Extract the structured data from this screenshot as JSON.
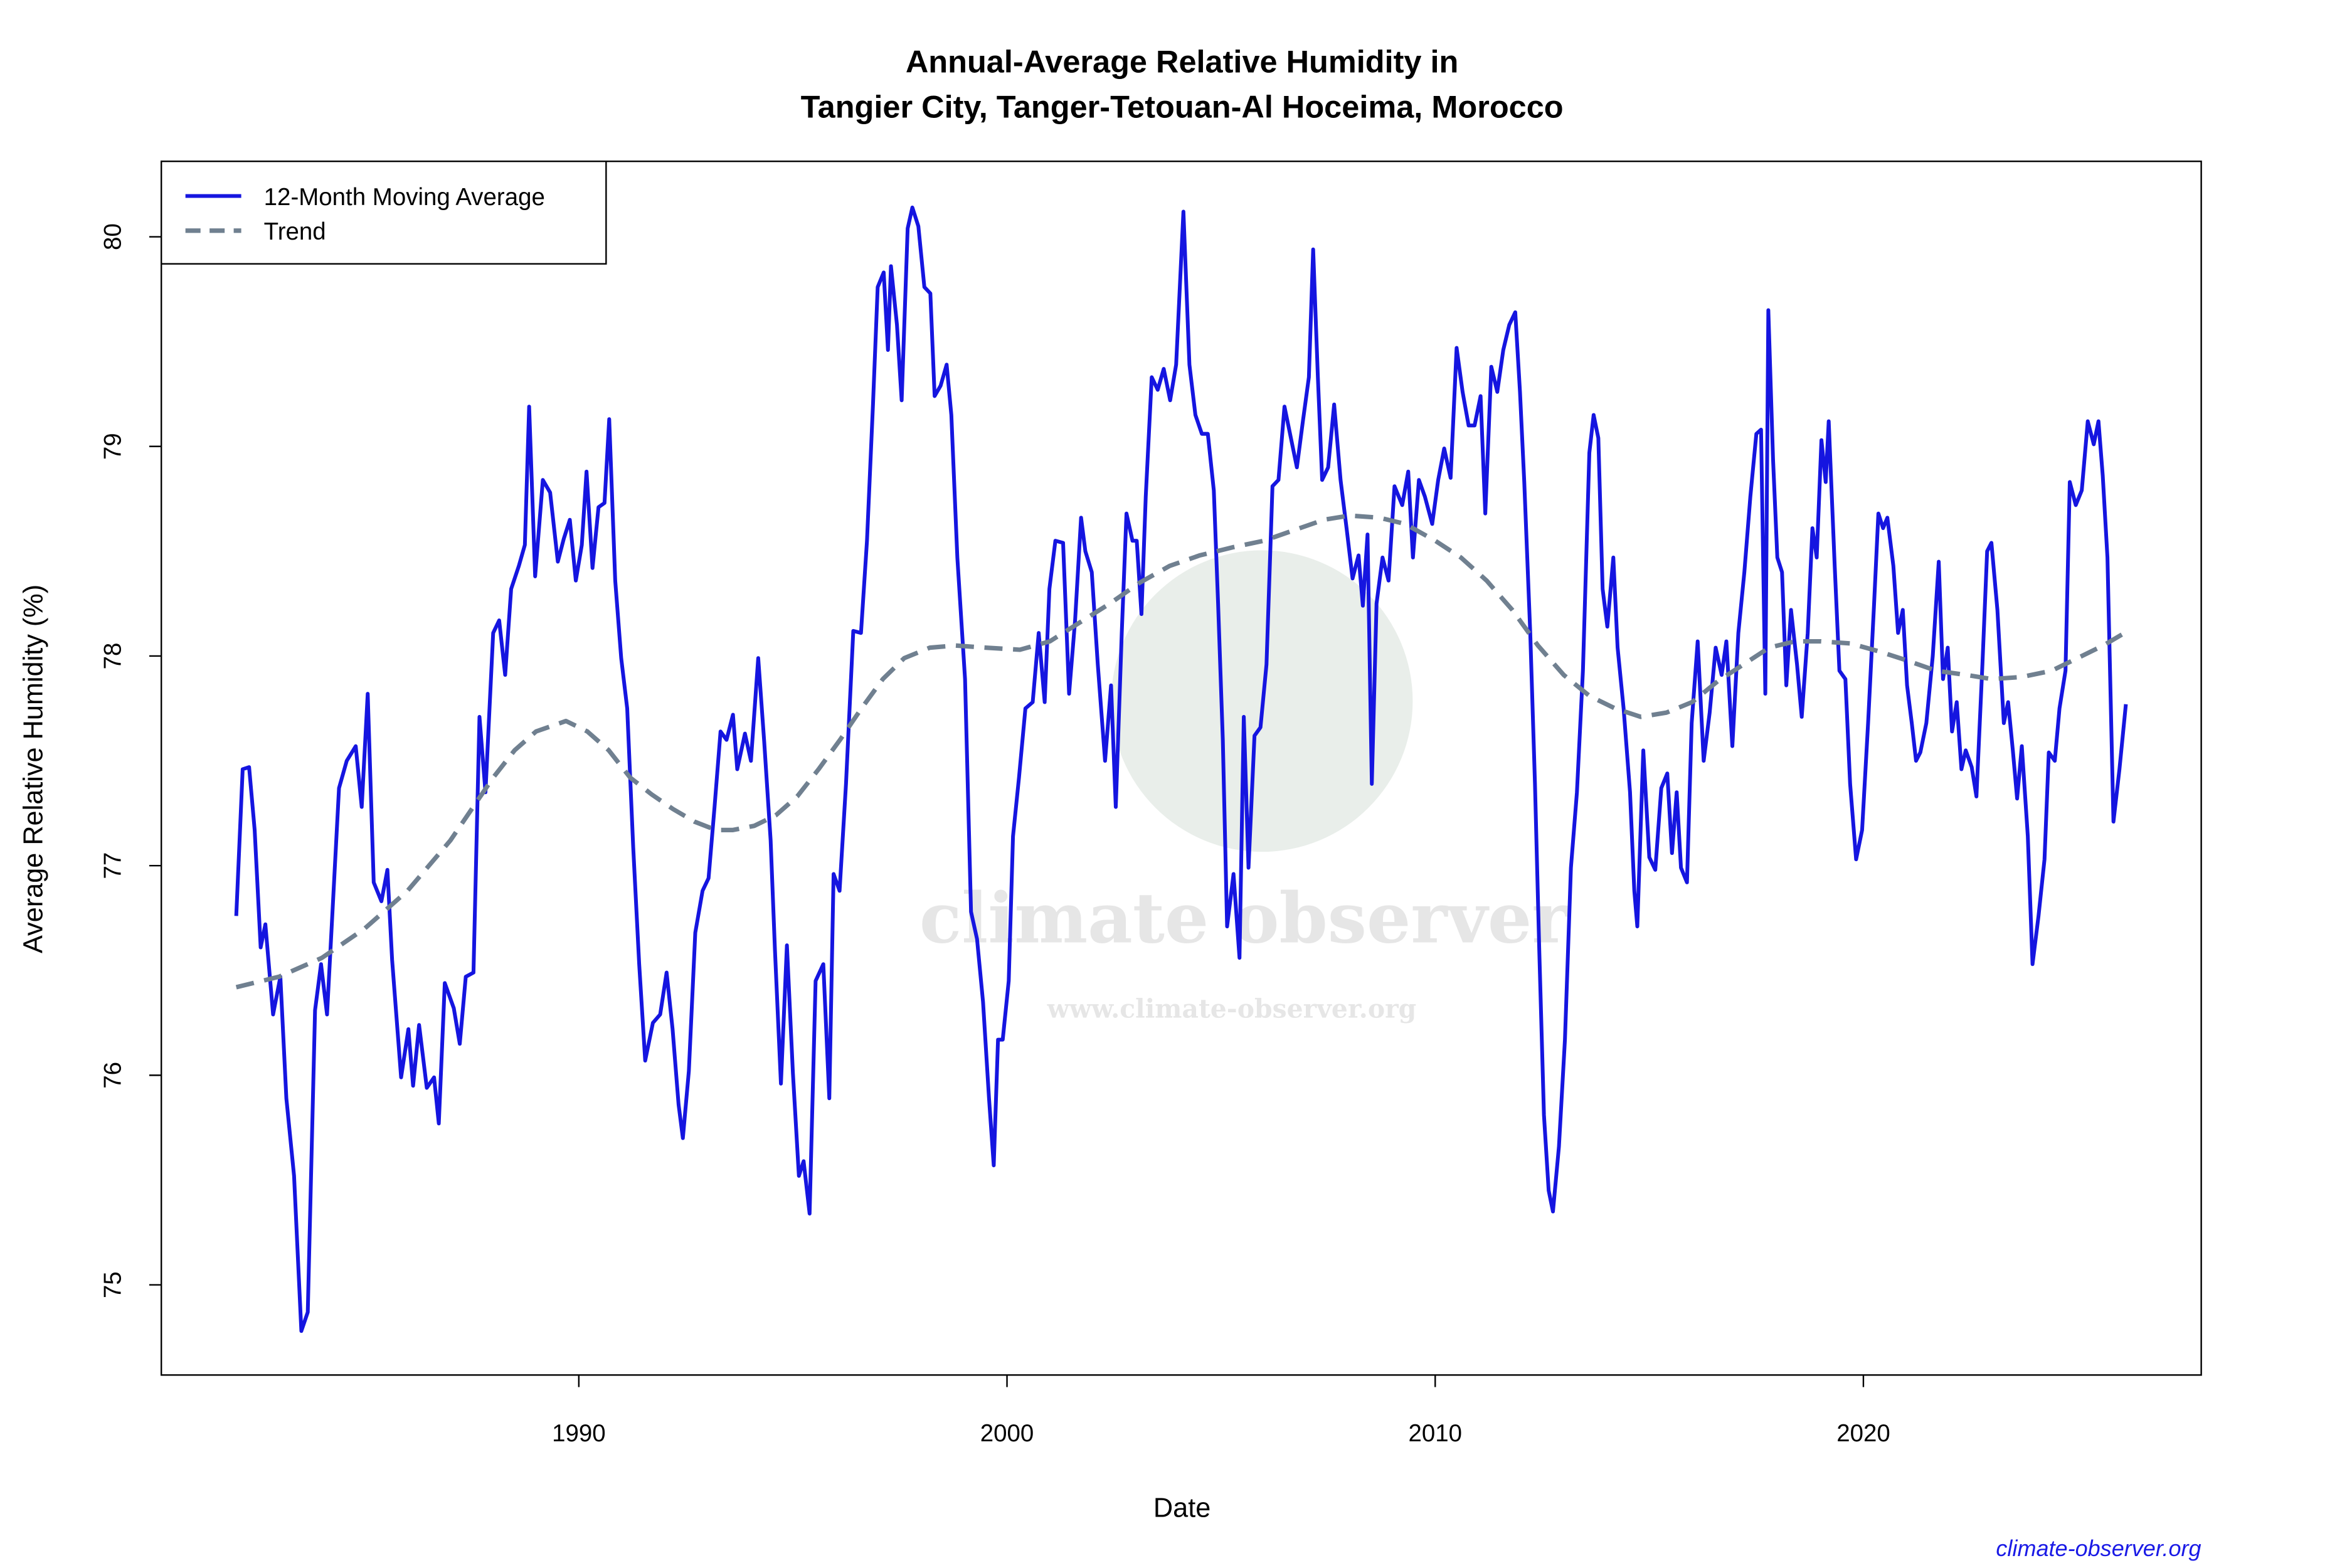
{
  "chart_data": {
    "type": "line",
    "title": [
      "Annual-Average Relative Humidity in",
      "Tangier City, Tanger-Tetouan-Al Hoceima, Morocco"
    ],
    "xlabel": "Date",
    "ylabel": "Average Relative Humidity (%)",
    "xlim": [
      1980.25,
      2027.89
    ],
    "ylim": [
      74.57,
      80.36
    ],
    "xticks": [
      1990,
      2000,
      2010,
      2020
    ],
    "yticks": [
      75,
      76,
      77,
      78,
      79,
      80
    ],
    "legend": "topleft",
    "watermark": {
      "text": "climate observer",
      "url": "www.climate-observer.org"
    },
    "source": "climate-observer.org",
    "series": [
      {
        "name": "12-Month Moving Average",
        "color": "#1515e0",
        "linestyle": "solid",
        "x": [
          1982.0,
          1982.15,
          1982.3,
          1982.43,
          1982.57,
          1982.68,
          1982.86,
          1983.03,
          1983.17,
          1983.35,
          1983.52,
          1983.67,
          1983.84,
          1983.98,
          1984.12,
          1984.26,
          1984.4,
          1984.58,
          1984.79,
          1984.93,
          1985.07,
          1985.21,
          1985.39,
          1985.53,
          1985.64,
          1985.85,
          1986.02,
          1986.13,
          1986.27,
          1986.45,
          1986.62,
          1986.73,
          1986.87,
          1987.08,
          1987.22,
          1987.36,
          1987.54,
          1987.68,
          1987.82,
          1988.0,
          1988.14,
          1988.28,
          1988.42,
          1988.6,
          1988.74,
          1988.84,
          1988.98,
          1989.16,
          1989.33,
          1989.51,
          1989.65,
          1989.79,
          1989.93,
          1990.07,
          1990.18,
          1990.32,
          1990.46,
          1990.6,
          1990.71,
          1990.85,
          1990.99,
          1991.13,
          1991.27,
          1991.41,
          1991.55,
          1991.73,
          1991.9,
          1992.05,
          1992.19,
          1992.33,
          1992.43,
          1992.57,
          1992.72,
          1992.89,
          1993.03,
          1993.17,
          1993.31,
          1993.45,
          1993.6,
          1993.7,
          1993.88,
          1994.02,
          1994.19,
          1994.33,
          1994.48,
          1994.58,
          1994.72,
          1994.86,
          1995.0,
          1995.14,
          1995.25,
          1995.39,
          1995.53,
          1995.71,
          1995.85,
          1995.95,
          1996.09,
          1996.24,
          1996.41,
          1996.59,
          1996.73,
          1996.87,
          1996.98,
          1997.12,
          1997.22,
          1997.29,
          1997.43,
          1997.54,
          1997.68,
          1997.79,
          1997.93,
          1998.07,
          1998.21,
          1998.31,
          1998.45,
          1998.59,
          1998.7,
          1998.84,
          1999.02,
          1999.16,
          1999.3,
          1999.44,
          1999.58,
          1999.69,
          1999.79,
          1999.9,
          2000.04,
          2000.14,
          2000.28,
          2000.43,
          2000.6,
          2000.74,
          2000.88,
          2000.99,
          2001.13,
          2001.31,
          2001.45,
          2001.59,
          2001.73,
          2001.83,
          2001.98,
          2002.12,
          2002.29,
          2002.43,
          2002.54,
          2002.68,
          2002.79,
          2002.93,
          2003.03,
          2003.14,
          2003.24,
          2003.38,
          2003.52,
          2003.66,
          2003.81,
          2003.95,
          2004.12,
          2004.26,
          2004.4,
          2004.55,
          2004.69,
          2004.83,
          2004.93,
          2005.04,
          2005.14,
          2005.29,
          2005.43,
          2005.53,
          2005.64,
          2005.78,
          2005.92,
          2006.06,
          2006.2,
          2006.34,
          2006.48,
          2006.63,
          2006.77,
          2006.91,
          2007.05,
          2007.15,
          2007.26,
          2007.36,
          2007.5,
          2007.64,
          2007.79,
          2007.93,
          2008.07,
          2008.21,
          2008.31,
          2008.42,
          2008.52,
          2008.63,
          2008.77,
          2008.91,
          2009.05,
          2009.23,
          2009.37,
          2009.48,
          2009.62,
          2009.76,
          2009.93,
          2010.07,
          2010.21,
          2010.36,
          2010.5,
          2010.64,
          2010.78,
          2010.92,
          2011.06,
          2011.17,
          2011.31,
          2011.45,
          2011.59,
          2011.73,
          2011.87,
          2011.98,
          2012.08,
          2012.22,
          2012.33,
          2012.43,
          2012.54,
          2012.65,
          2012.75,
          2012.89,
          2013.03,
          2013.17,
          2013.31,
          2013.45,
          2013.6,
          2013.7,
          2013.81,
          2013.91,
          2014.02,
          2014.16,
          2014.26,
          2014.4,
          2014.55,
          2014.65,
          2014.72,
          2014.86,
          2015.0,
          2015.14,
          2015.28,
          2015.42,
          2015.53,
          2015.64,
          2015.74,
          2015.88,
          2015.99,
          2016.13,
          2016.27,
          2016.41,
          2016.55,
          2016.69,
          2016.8,
          2016.94,
          2017.08,
          2017.22,
          2017.36,
          2017.5,
          2017.61,
          2017.71,
          2017.78,
          2017.89,
          2017.99,
          2018.1,
          2018.2,
          2018.31,
          2018.45,
          2018.56,
          2018.7,
          2018.81,
          2018.91,
          2019.02,
          2019.12,
          2019.19,
          2019.33,
          2019.44,
          2019.58,
          2019.69,
          2019.83,
          2019.97,
          2020.11,
          2020.25,
          2020.35,
          2020.46,
          2020.56,
          2020.7,
          2020.81,
          2020.92,
          2021.02,
          2021.13,
          2021.23,
          2021.33,
          2021.47,
          2021.62,
          2021.76,
          2021.86,
          2021.97,
          2022.07,
          2022.18,
          2022.29,
          2022.39,
          2022.53,
          2022.64,
          2022.78,
          2022.89,
          2022.99,
          2023.13,
          2023.28,
          2023.38,
          2023.49,
          2023.59,
          2023.7,
          2023.84,
          2023.95,
          2024.09,
          2024.23,
          2024.33,
          2024.47,
          2024.58,
          2024.72,
          2024.82,
          2024.96,
          2025.1,
          2025.24,
          2025.38,
          2025.49,
          2025.59,
          2025.7,
          2025.84,
          2025.98,
          2026.13
        ],
        "values": [
          76.76,
          77.46,
          77.47,
          77.17,
          76.61,
          76.72,
          76.29,
          76.47,
          75.89,
          75.52,
          74.78,
          74.87,
          76.31,
          76.53,
          76.29,
          76.83,
          77.37,
          77.5,
          77.57,
          77.28,
          77.82,
          76.92,
          76.83,
          76.98,
          76.55,
          75.99,
          76.22,
          75.95,
          76.24,
          75.94,
          75.99,
          75.77,
          76.44,
          76.32,
          76.15,
          76.47,
          76.49,
          77.71,
          77.35,
          78.11,
          78.17,
          77.91,
          78.32,
          78.43,
          78.53,
          79.19,
          78.38,
          78.84,
          78.78,
          78.45,
          78.56,
          78.65,
          78.36,
          78.53,
          78.88,
          78.42,
          78.71,
          78.73,
          79.13,
          78.36,
          77.99,
          77.75,
          77.09,
          76.53,
          76.07,
          76.25,
          76.29,
          76.49,
          76.22,
          75.86,
          75.7,
          76.02,
          76.68,
          76.88,
          76.94,
          77.28,
          77.64,
          77.6,
          77.72,
          77.46,
          77.63,
          77.5,
          77.99,
          77.59,
          77.12,
          76.6,
          75.96,
          76.62,
          76.01,
          75.52,
          75.59,
          75.34,
          76.45,
          76.53,
          75.89,
          76.96,
          76.88,
          77.39,
          78.12,
          78.11,
          78.55,
          79.2,
          79.76,
          79.83,
          79.46,
          79.86,
          79.58,
          79.22,
          80.04,
          80.14,
          80.05,
          79.76,
          79.73,
          79.24,
          79.29,
          79.39,
          79.15,
          78.47,
          77.89,
          76.78,
          76.65,
          76.35,
          75.89,
          75.57,
          76.17,
          76.17,
          76.45,
          77.14,
          77.42,
          77.75,
          77.78,
          78.11,
          77.78,
          78.32,
          78.55,
          78.54,
          77.82,
          78.17,
          78.66,
          78.5,
          78.4,
          77.96,
          77.5,
          77.86,
          77.28,
          78.11,
          78.68,
          78.55,
          78.55,
          78.2,
          78.76,
          79.33,
          79.27,
          79.37,
          79.22,
          79.39,
          80.12,
          79.39,
          79.15,
          79.06,
          79.06,
          78.79,
          78.25,
          77.6,
          76.71,
          76.96,
          76.56,
          77.71,
          76.99,
          77.62,
          77.66,
          77.96,
          78.81,
          78.84,
          79.19,
          79.04,
          78.9,
          79.12,
          79.33,
          79.94,
          79.33,
          78.84,
          78.9,
          79.2,
          78.84,
          78.61,
          78.37,
          78.48,
          78.24,
          78.58,
          77.39,
          78.25,
          78.47,
          78.36,
          78.81,
          78.72,
          78.88,
          78.47,
          78.84,
          78.76,
          78.63,
          78.84,
          78.99,
          78.85,
          79.47,
          79.26,
          79.1,
          79.1,
          79.24,
          78.68,
          79.38,
          79.26,
          79.46,
          79.58,
          79.64,
          79.26,
          78.83,
          78.11,
          77.39,
          76.6,
          75.81,
          75.45,
          75.35,
          75.66,
          76.17,
          76.99,
          77.35,
          77.93,
          78.97,
          79.15,
          79.04,
          78.32,
          78.14,
          78.47,
          78.04,
          77.75,
          77.35,
          76.88,
          76.71,
          77.55,
          77.04,
          76.98,
          77.37,
          77.44,
          77.06,
          77.35,
          76.99,
          76.92,
          77.68,
          78.07,
          77.5,
          77.73,
          78.04,
          77.91,
          78.07,
          77.57,
          78.11,
          78.4,
          78.76,
          79.06,
          79.08,
          77.82,
          79.65,
          78.94,
          78.47,
          78.4,
          77.86,
          78.22,
          77.96,
          77.71,
          78.11,
          78.61,
          78.47,
          79.03,
          78.83,
          79.12,
          78.43,
          77.93,
          77.89,
          77.39,
          77.03,
          77.17,
          77.68,
          78.25,
          78.68,
          78.61,
          78.66,
          78.43,
          78.11,
          78.22,
          77.86,
          77.68,
          77.5,
          77.54,
          77.68,
          78.0,
          78.45,
          77.89,
          78.04,
          77.64,
          77.78,
          77.46,
          77.55,
          77.47,
          77.33,
          77.96,
          78.5,
          78.54,
          78.22,
          77.68,
          77.78,
          77.55,
          77.32,
          77.57,
          77.14,
          76.53,
          76.76,
          77.03,
          77.54,
          77.5,
          77.75,
          77.93,
          78.83,
          78.72,
          78.79,
          79.12,
          79.01,
          79.12,
          78.86,
          78.47,
          77.21,
          77.46,
          77.77
        ]
      },
      {
        "name": "Trend",
        "color": "#708090",
        "linestyle": "dashed",
        "x": [
          1982,
          1983,
          1984,
          1985,
          1986,
          1987,
          1987.5,
          1988,
          1988.5,
          1989,
          1989.7,
          1990.2,
          1990.7,
          1991.2,
          1991.7,
          1992.2,
          1992.7,
          1993.2,
          1993.6,
          1994.1,
          1994.6,
          1995.1,
          1995.6,
          1996.1,
          1996.6,
          1997.1,
          1997.6,
          1998.2,
          1998.8,
          1999.5,
          2000.3,
          2001,
          2001.7,
          2002.4,
          2003.1,
          2003.8,
          2004.5,
          2005.3,
          2006,
          2006.7,
          2007.4,
          2008,
          2008.7,
          2009.3,
          2010,
          2010.6,
          2011.2,
          2011.8,
          2012.4,
          2013,
          2013.6,
          2014.2,
          2014.8,
          2015.4,
          2016,
          2016.6,
          2017.2,
          2017.8,
          2018.4,
          2019,
          2019.7,
          2020.4,
          2021,
          2021.7,
          2022.4,
          2023,
          2023.7,
          2024.4,
          2025,
          2025.6,
          2026.1
        ],
        "values": [
          76.42,
          76.47,
          76.56,
          76.7,
          76.88,
          77.12,
          77.27,
          77.42,
          77.55,
          77.64,
          77.69,
          77.64,
          77.55,
          77.42,
          77.34,
          77.27,
          77.21,
          77.17,
          77.17,
          77.19,
          77.24,
          77.33,
          77.46,
          77.6,
          77.75,
          77.89,
          77.99,
          78.04,
          78.05,
          78.04,
          78.03,
          78.07,
          78.16,
          78.25,
          78.35,
          78.43,
          78.48,
          78.52,
          78.55,
          78.6,
          78.65,
          78.67,
          78.66,
          78.63,
          78.55,
          78.47,
          78.36,
          78.22,
          78.05,
          77.91,
          77.81,
          77.75,
          77.71,
          77.73,
          77.78,
          77.88,
          77.96,
          78.04,
          78.07,
          78.07,
          78.06,
          78.02,
          77.98,
          77.93,
          77.91,
          77.89,
          77.9,
          77.93,
          77.99,
          78.05,
          78.11
        ]
      }
    ]
  }
}
